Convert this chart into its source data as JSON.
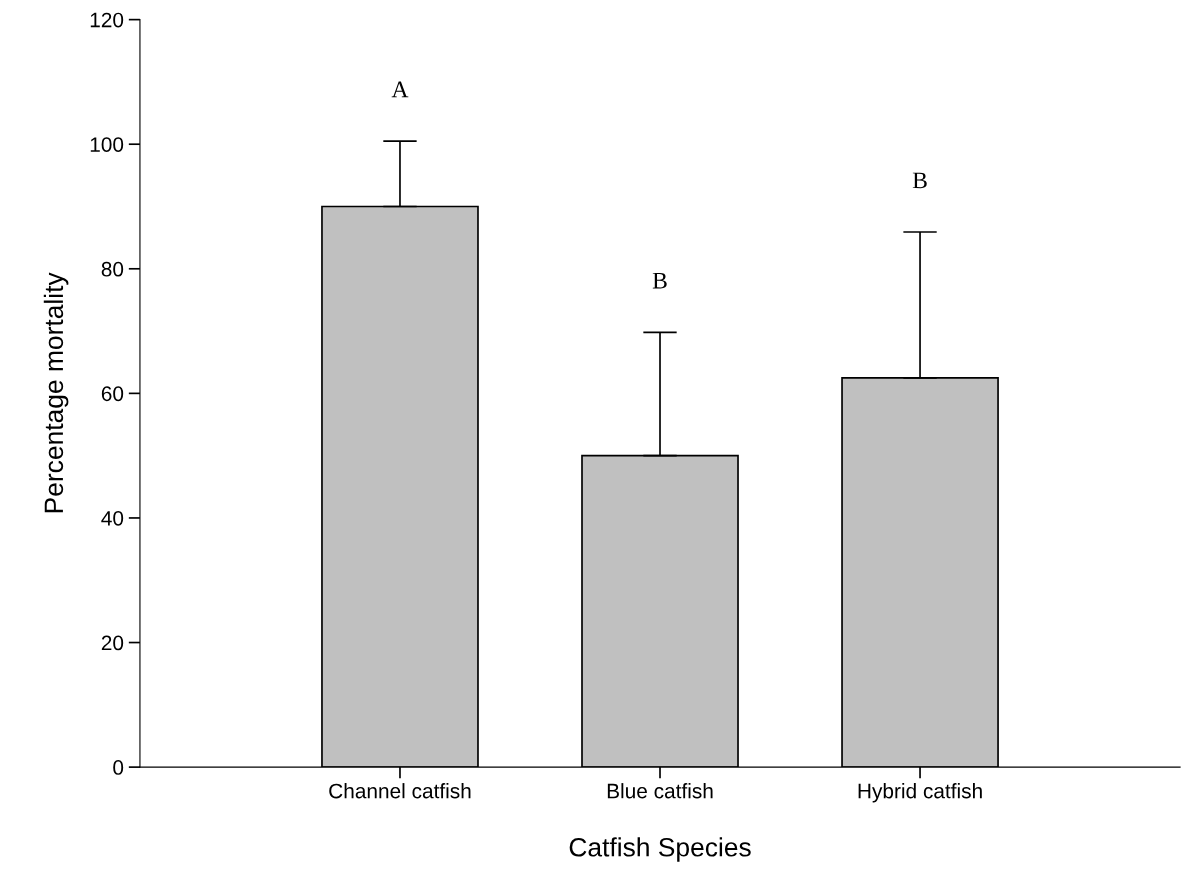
{
  "chart_data": {
    "type": "bar",
    "xlabel": "Catfish Species",
    "ylabel": "Percentage mortality",
    "categories": [
      "Channel catfish",
      "Blue catfish",
      "Hybrid catfish"
    ],
    "values": [
      90,
      50,
      62.5
    ],
    "color": "#c0c0c0",
    "errors": [
      [
        90,
        100.5
      ],
      [
        50,
        69.8
      ],
      [
        62.5,
        85.9
      ]
    ],
    "ylim": [
      0,
      120
    ],
    "yticks": [
      0,
      20,
      40,
      60,
      80,
      100,
      120
    ],
    "grid": false,
    "annotations": [
      "A",
      "B",
      "B"
    ]
  }
}
